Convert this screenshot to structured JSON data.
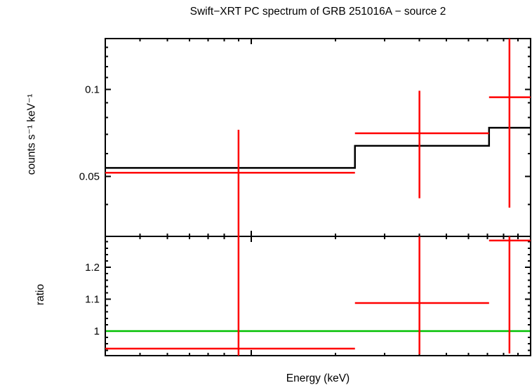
{
  "chart_data": {
    "type": "line",
    "title": "Swift−XRT PC spectrum of GRB 251016A − source 2",
    "xlabel": "Energy (keV)",
    "x_scale": "log",
    "x_range": [
      0.3,
      10
    ],
    "x_major_ticks": [
      1
    ],
    "x_minor_ticks": [
      0.4,
      0.5,
      0.6,
      0.7,
      0.8,
      0.9,
      2,
      3,
      4,
      5,
      6,
      7,
      8,
      9
    ],
    "x_tick_labels_visible": false,
    "colors": {
      "data": "#ff0000",
      "model": "#000000",
      "reference": "#00c000",
      "frame": "#000000",
      "background": "#ffffff",
      "text": "#000000"
    },
    "panels": [
      {
        "name": "spectrum",
        "ylabel": "counts s⁻¹ keV⁻¹",
        "y_scale": "log",
        "y_range": [
          0.031,
          0.15
        ],
        "y_major_ticks": [
          {
            "value": 0.05,
            "label": "0.05"
          },
          {
            "value": 0.1,
            "label": "0.1"
          }
        ],
        "y_minor_ticks": [
          0.04,
          0.06,
          0.07,
          0.08,
          0.09,
          0.11,
          0.12,
          0.13,
          0.14
        ],
        "data_points": [
          {
            "e_lo": 0.3,
            "e_hi": 2.35,
            "e_center": 0.9,
            "value": 0.0515,
            "err_low": 0.02,
            "err_high": 0.0725
          },
          {
            "e_lo": 2.35,
            "e_hi": 7.1,
            "e_center": 4.0,
            "value": 0.0705,
            "err_low": 0.042,
            "err_high": 0.099
          },
          {
            "e_lo": 7.1,
            "e_hi": 10,
            "e_center": 8.4,
            "value": 0.094,
            "err_low": 0.039,
            "err_high": 0.17
          }
        ],
        "model_steps": [
          {
            "e_lo": 0.3,
            "e_hi": 2.35,
            "value": 0.0535
          },
          {
            "e_lo": 2.35,
            "e_hi": 7.1,
            "value": 0.0638
          },
          {
            "e_lo": 7.1,
            "e_hi": 10,
            "value": 0.0737
          }
        ]
      },
      {
        "name": "ratio",
        "ylabel": "ratio",
        "y_scale": "linear",
        "y_range": [
          0.923,
          1.297
        ],
        "y_major_ticks": [
          {
            "value": 1,
            "label": "1"
          },
          {
            "value": 1.1,
            "label": "1.1"
          },
          {
            "value": 1.2,
            "label": "1.2"
          }
        ],
        "y_minor_ticks": [
          0.94,
          0.96,
          0.98,
          1.02,
          1.04,
          1.06,
          1.08,
          1.12,
          1.14,
          1.16,
          1.18,
          1.22,
          1.24,
          1.26,
          1.28
        ],
        "reference_value": 1,
        "data_points": [
          {
            "e_lo": 0.3,
            "e_hi": 2.35,
            "e_center": 0.9,
            "value": 0.945,
            "err_low": 0.5,
            "err_high": 1.5
          },
          {
            "e_lo": 2.35,
            "e_hi": 7.1,
            "e_center": 4.0,
            "value": 1.088,
            "err_low": 0.927,
            "err_high": 1.3
          },
          {
            "e_lo": 7.1,
            "e_hi": 10,
            "e_center": 8.4,
            "value": 1.284,
            "err_low": 0.93,
            "err_high": 1.5
          }
        ]
      }
    ]
  }
}
